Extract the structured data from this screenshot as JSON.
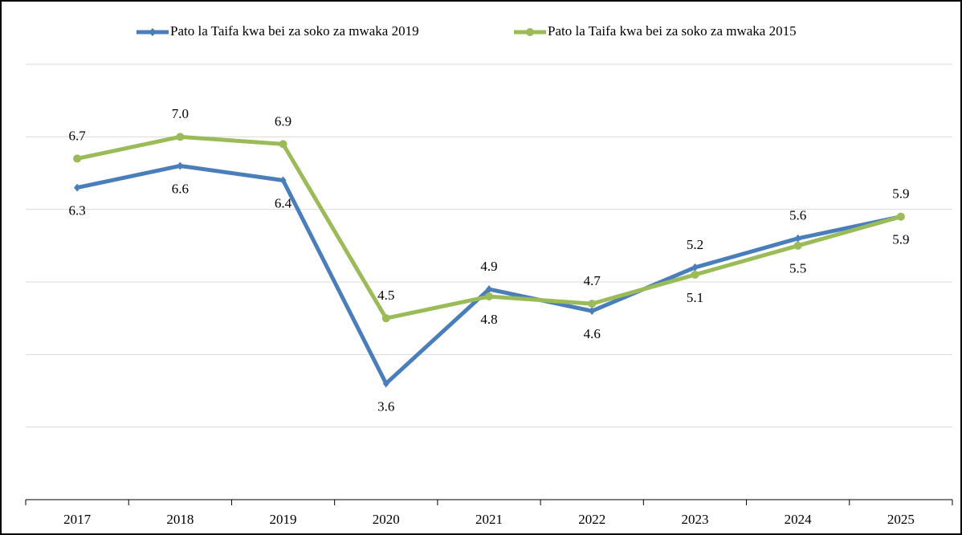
{
  "chart_data": {
    "type": "line",
    "categories": [
      "2017",
      "2018",
      "2019",
      "2020",
      "2021",
      "2022",
      "2023",
      "2024",
      "2025"
    ],
    "series": [
      {
        "name": "Pato la Taifa kwa bei za soko za mwaka 2019",
        "color": "#4a7ebb",
        "values": [
          6.3,
          6.6,
          6.4,
          3.6,
          4.9,
          4.6,
          5.2,
          5.6,
          5.9
        ],
        "value_labels": [
          "6.3",
          "6.6",
          "6.4",
          "3.6",
          "4.9",
          "4.6",
          "5.2",
          "5.6",
          "5.9"
        ]
      },
      {
        "name": "Pato la Taifa kwa bei za soko za mwaka 2015",
        "color": "#9bbb59",
        "values": [
          6.7,
          7.0,
          6.9,
          4.5,
          4.8,
          4.7,
          5.1,
          5.5,
          5.9
        ],
        "value_labels": [
          "6.7",
          "7.0",
          "6.9",
          "4.5",
          "4.8",
          "4.7",
          "5.1",
          "5.5",
          "5.9"
        ]
      }
    ],
    "ylim": [
      2,
      8
    ],
    "yticks": [
      3,
      4,
      5,
      6,
      7,
      8
    ],
    "grid": true,
    "legend": "top"
  }
}
